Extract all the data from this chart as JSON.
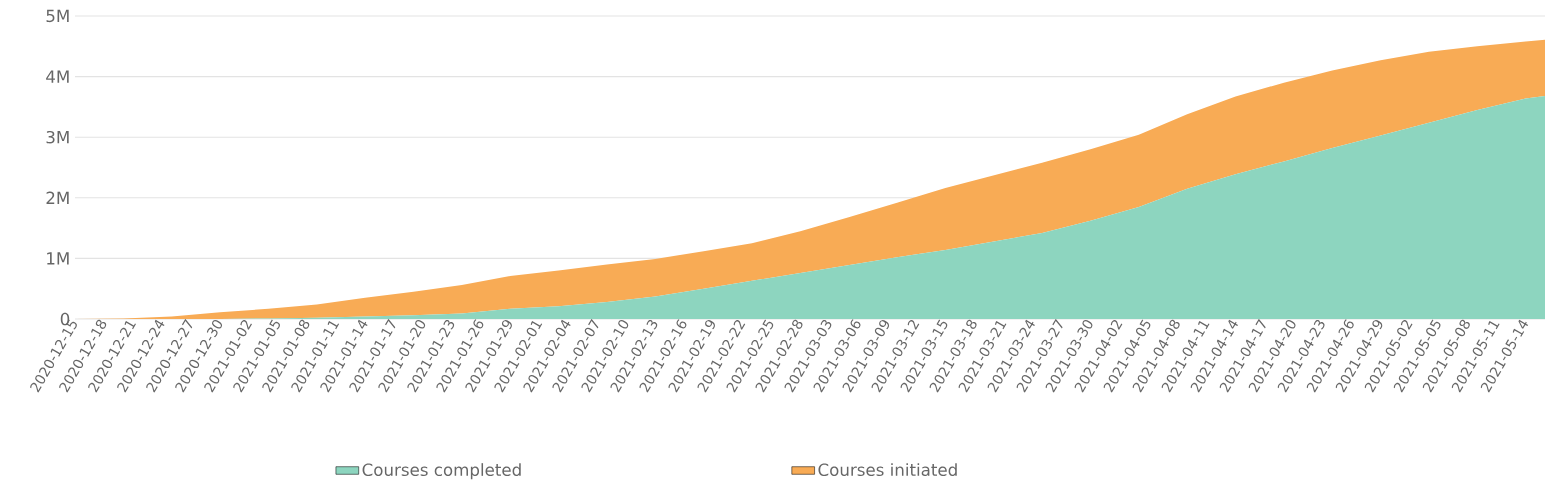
{
  "chart_data": {
    "type": "area",
    "stacked": true,
    "grid": "y",
    "legend": "bottom",
    "x": [
      "2020-12-15",
      "2020-12-20",
      "2020-12-25",
      "2020-12-30",
      "2021-01-04",
      "2021-01-09",
      "2021-01-14",
      "2021-01-19",
      "2021-01-24",
      "2021-01-29",
      "2021-02-03",
      "2021-02-08",
      "2021-02-13",
      "2021-02-18",
      "2021-02-23",
      "2021-02-28",
      "2021-03-05",
      "2021-03-10",
      "2021-03-15",
      "2021-03-20",
      "2021-03-25",
      "2021-03-30",
      "2021-04-04",
      "2021-04-09",
      "2021-04-14",
      "2021-04-19",
      "2021-04-24",
      "2021-04-29",
      "2021-05-04",
      "2021-05-09",
      "2021-05-14",
      "2021-05-16"
    ],
    "series": [
      {
        "name": "Courses completed",
        "color": "#8dd5bf",
        "values": [
          0,
          0,
          0,
          0,
          10000,
          20000,
          40000,
          60000,
          90000,
          170000,
          210000,
          280000,
          370000,
          500000,
          630000,
          760000,
          890000,
          1020000,
          1140000,
          1280000,
          1420000,
          1620000,
          1850000,
          2150000,
          2390000,
          2600000,
          2820000,
          3030000,
          3240000,
          3450000,
          3640000,
          3680000
        ]
      },
      {
        "name": "Courses initiated",
        "color": "#f8ab55",
        "values": [
          0,
          10000,
          40000,
          110000,
          160000,
          220000,
          310000,
          390000,
          470000,
          540000,
          590000,
          620000,
          620000,
          620000,
          620000,
          690000,
          790000,
          900000,
          1020000,
          1090000,
          1160000,
          1180000,
          1190000,
          1230000,
          1280000,
          1300000,
          1280000,
          1240000,
          1170000,
          1050000,
          940000,
          930000
        ]
      }
    ],
    "xlim": [
      "2020-12-15",
      "2021-05-16"
    ],
    "xticks": [
      "2020-12-15",
      "2020-12-18",
      "2020-12-21",
      "2020-12-24",
      "2020-12-27",
      "2020-12-30",
      "2021-01-02",
      "2021-01-05",
      "2021-01-08",
      "2021-01-11",
      "2021-01-14",
      "2021-01-17",
      "2021-01-20",
      "2021-01-23",
      "2021-01-26",
      "2021-01-29",
      "2021-02-01",
      "2021-02-04",
      "2021-02-07",
      "2021-02-10",
      "2021-02-13",
      "2021-02-16",
      "2021-02-19",
      "2021-02-22",
      "2021-02-25",
      "2021-02-28",
      "2021-03-03",
      "2021-03-06",
      "2021-03-09",
      "2021-03-12",
      "2021-03-15",
      "2021-03-18",
      "2021-03-21",
      "2021-03-24",
      "2021-03-27",
      "2021-03-30",
      "2021-04-02",
      "2021-04-05",
      "2021-04-08",
      "2021-04-11",
      "2021-04-14",
      "2021-04-17",
      "2021-04-20",
      "2021-04-23",
      "2021-04-26",
      "2021-04-29",
      "2021-05-02",
      "2021-05-05",
      "2021-05-08",
      "2021-05-11",
      "2021-05-14"
    ],
    "ylim": [
      0,
      5000000
    ],
    "yticks": [
      0,
      {
        "value": 1000000,
        "label": "1M"
      },
      {
        "value": 2000000,
        "label": "2M"
      },
      {
        "value": 3000000,
        "label": "3M"
      },
      {
        "value": 4000000,
        "label": "4M"
      },
      {
        "value": 5000000,
        "label": "5M"
      }
    ]
  }
}
